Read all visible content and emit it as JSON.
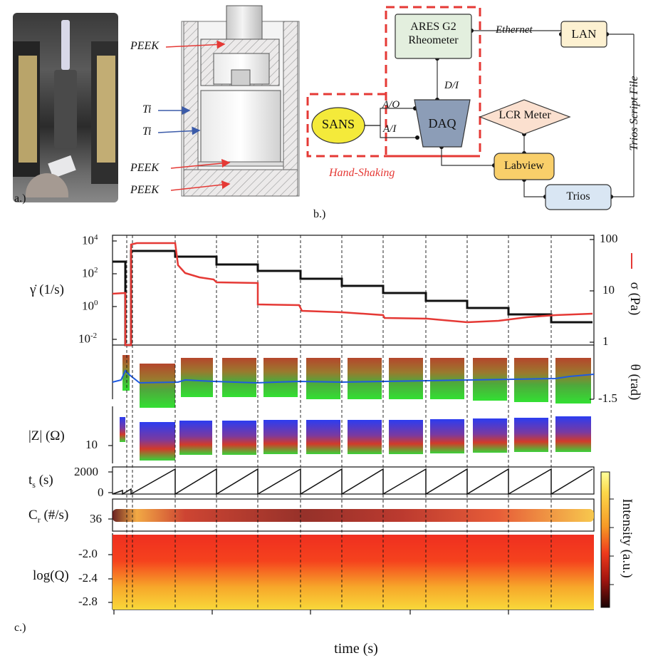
{
  "panel_a": {
    "label": "a.)"
  },
  "panel_b": {
    "label": "b.)",
    "cell_labels": {
      "peek1": "PEEK",
      "ti1": "Ti",
      "ti2": "Ti",
      "peek2": "PEEK",
      "peek3": "PEEK"
    },
    "nodes": {
      "rheometer": "ARES G2\nRheometer",
      "rheometer_line1": "ARES G2",
      "rheometer_line2": "Rheometer",
      "lan": "LAN",
      "sans": "SANS",
      "daq": "DAQ",
      "lcr": "LCR Meter",
      "labview": "Labview",
      "trios": "Trios"
    },
    "edge_labels": {
      "ethernet": "Ethernet",
      "di": "D/I",
      "ao": "A/O",
      "ai": "A/I",
      "trios_script": "Trios Script File",
      "handshaking": "Hand-Shaking"
    },
    "colors": {
      "rheometer": "#e3efde",
      "lan": "#fdf1d1",
      "sans": "#f4ea3a",
      "daq": "#8c9db7",
      "lcr": "#fbe0cf",
      "labview": "#f9cf6a",
      "trios": "#d9e6f3",
      "dashed": "#e53935"
    }
  },
  "panel_c": {
    "label": "c.)",
    "xlabel": "time (s)",
    "rows": {
      "gamma": {
        "ylabel": "γ̇ (1/s)",
        "ticks": [
          "10",
          "10",
          "10",
          "10"
        ],
        "tick_exp": [
          "4",
          "2",
          "0",
          "-2"
        ],
        "right_label": "σ (Pa)",
        "right_ticks": [
          "100",
          "10",
          "1"
        ]
      },
      "theta": {
        "right_label": "θ (rad)",
        "right_ticks": [
          "-1.5"
        ]
      },
      "z": {
        "ylabel": "|Z| (Ω)",
        "ticks": [
          "10"
        ]
      },
      "ts": {
        "ylabel": "t",
        "ylabel_sub": "s",
        "ylabel_tail": " (s)",
        "ticks": [
          "2000",
          "0"
        ]
      },
      "cr": {
        "ylabel": "C",
        "ylabel_sub": "r",
        "ylabel_tail": " (#/s)",
        "ticks": [
          "36"
        ]
      },
      "q": {
        "ylabel": "log(Q)",
        "ticks": [
          "-2.0",
          "-2.4",
          "-2.8"
        ]
      }
    },
    "colorbar_label": "Intensity (a.u.)"
  }
}
